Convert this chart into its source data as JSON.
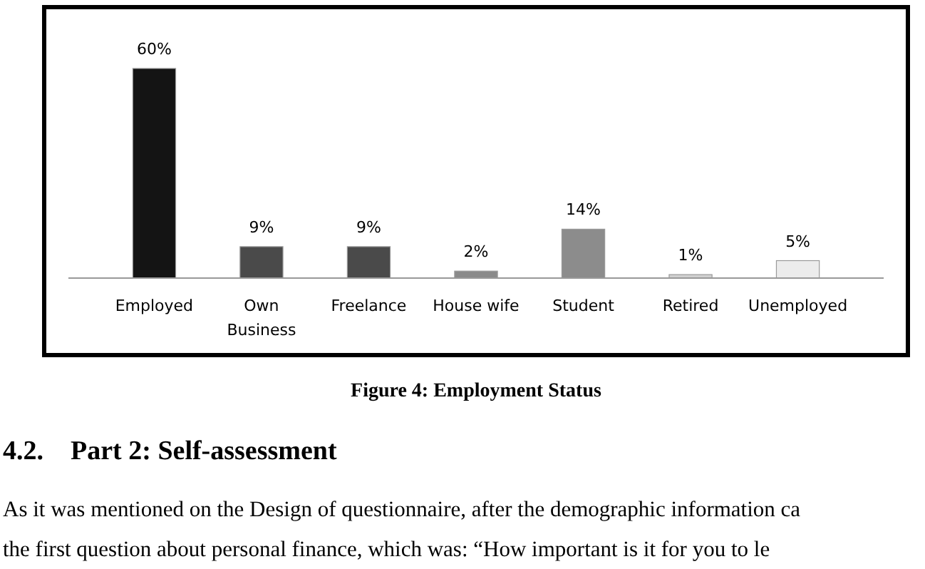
{
  "chart_data": {
    "type": "bar",
    "title": "Figure 4: Employment Status",
    "categories": [
      "Employed",
      "Own Business",
      "Freelance",
      "House wife",
      "Student",
      "Retired",
      "Unemployed"
    ],
    "values": [
      60,
      9,
      9,
      2,
      14,
      1,
      5
    ],
    "value_labels": [
      "60%",
      "9%",
      "9%",
      "2%",
      "14%",
      "1%",
      "5%"
    ],
    "colors": [
      "#141414",
      "#4a4a4a",
      "#4a4a4a",
      "#8a8a8a",
      "#8c8c8c",
      "#d0d0d0",
      "#ececec"
    ],
    "relative": false,
    "annotations": [
      "4.2.    Part 2: Self-assessment",
      "As it was mentioned on the Design of questionnaire, after the demographic information ca",
      "the first question about personal finance, which was: “How important is it for you to le"
    ]
  }
}
